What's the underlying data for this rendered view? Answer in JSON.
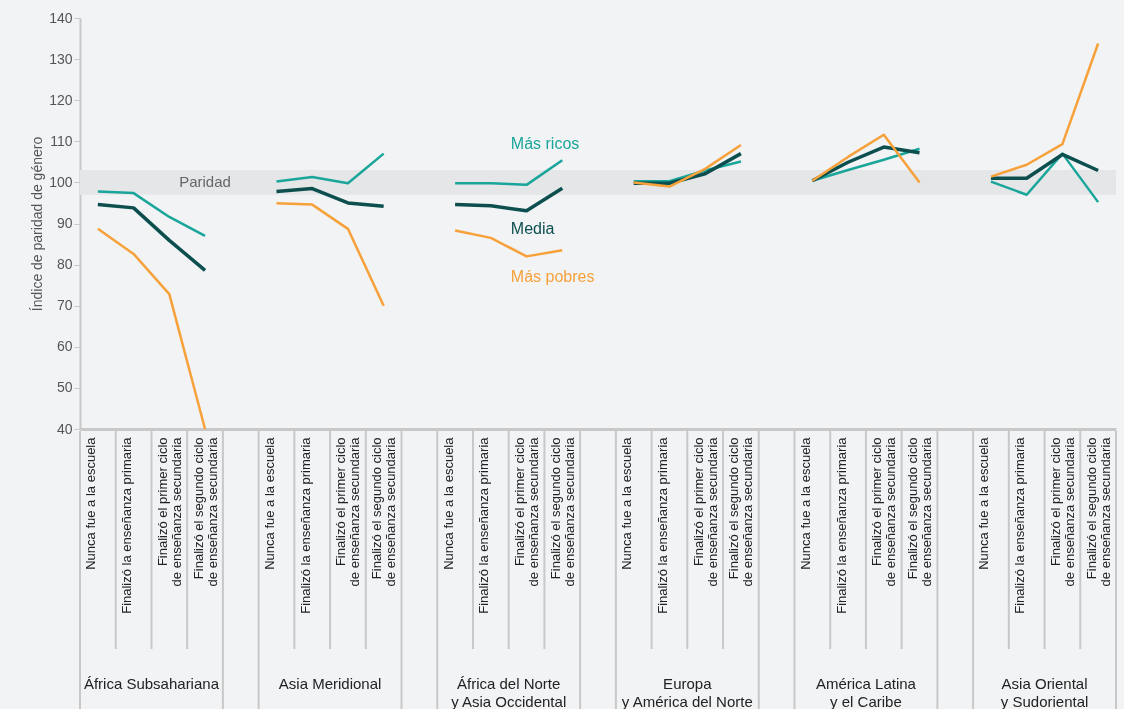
{
  "chart_data": {
    "type": "line",
    "ylabel": "Índice de paridad de género",
    "categories": [
      "Nunca fue a la escuela",
      "Finalizó la enseñanza primaria",
      "Finalizó el primer ciclo\nde enseñanza secundaria",
      "Finalizó el segundo ciclo\nde enseñanza secundaria",
      null,
      "Nunca fue a la escuela",
      "Finalizó la enseñanza primaria",
      "Finalizó el primer ciclo\nde enseñanza secundaria",
      "Finalizó el segundo ciclo\nde enseñanza secundaria",
      null,
      "Nunca fue a la escuela",
      "Finalizó la enseñanza primaria",
      "Finalizó el primer ciclo\nde enseñanza secundaria",
      "Finalizó el segundo ciclo\nde enseñanza secundaria",
      null,
      "Nunca fue a la escuela",
      "Finalizó la enseñanza primaria",
      "Finalizó el primer ciclo\nde enseñanza secundaria",
      "Finalizó el segundo ciclo\nde enseñanza secundaria",
      null,
      "Nunca fue a la escuela",
      "Finalizó la enseñanza primaria",
      "Finalizó el primer ciclo\nde enseñanza secundaria",
      "Finalizó el segundo ciclo\nde enseñanza secundaria",
      null,
      "Nunca fue a la escuela",
      "Finalizó la enseñanza primaria",
      "Finalizó el primer ciclo\nde enseñanza secundaria",
      "Finalizó el segundo ciclo\nde enseñanza secundaria"
    ],
    "series": [
      {
        "name": "Más ricos",
        "color": "#1aa59a",
        "values": [
          97.8,
          97.4,
          91.6,
          87.0,
          null,
          100.2,
          101.3,
          99.8,
          107.0,
          null,
          99.8,
          99.8,
          99.4,
          105.4,
          null,
          100.3,
          100.3,
          102.9,
          105.1,
          null,
          100.4,
          103.0,
          105.5,
          108.2,
          null,
          100.2,
          97.0,
          107.0,
          95.2
        ]
      },
      {
        "name": "Media",
        "color": "#0d4f4f",
        "values": [
          94.6,
          93.8,
          85.9,
          78.6,
          null,
          97.8,
          98.5,
          95.0,
          94.2,
          null,
          94.6,
          94.3,
          93.1,
          98.6,
          null,
          99.8,
          99.8,
          102.1,
          107.0,
          null,
          100.4,
          104.9,
          108.6,
          107.2,
          null,
          101.0,
          101.0,
          106.8,
          102.9
        ]
      },
      {
        "name": "Más pobres",
        "color": "#f7a13a",
        "values": [
          88.7,
          82.6,
          72.8,
          40,
          null,
          94.9,
          94.6,
          88.7,
          70,
          null,
          88.3,
          86.5,
          82.0,
          83.5,
          null,
          100.0,
          99.0,
          103.3,
          109.1,
          null,
          100.4,
          106.2,
          111.6,
          100.0,
          null,
          101.4,
          104.3,
          109.3,
          133.8
        ]
      }
    ],
    "ylim": [
      40,
      140
    ],
    "yticks": [
      40,
      50,
      60,
      70,
      80,
      90,
      100,
      110,
      120,
      130,
      140
    ],
    "bands": [
      {
        "axis": "y",
        "from": 97,
        "to": 103,
        "label": "Paridad",
        "color": "#e4e6e8"
      }
    ],
    "annotations": [
      "África Subsahariana",
      "Asia Meridional",
      "África del Norte\ny Asia Occidental",
      "Europa\ny América del Norte",
      "América Latina\ny el Caribe",
      "Asia Oriental\ny Sudoriental"
    ]
  }
}
